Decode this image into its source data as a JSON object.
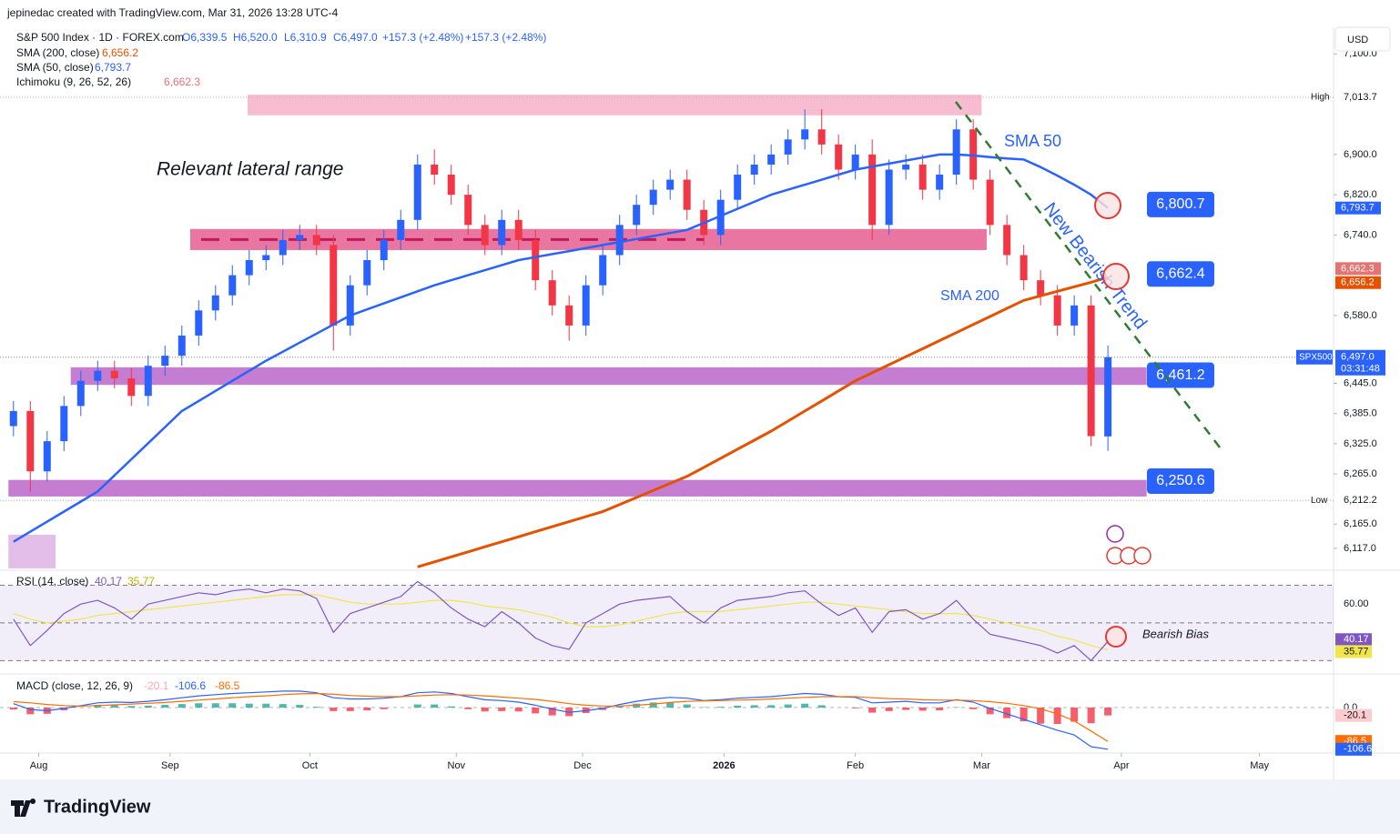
{
  "header": {
    "text": "jepinedac created with TradingView.com, Mar 31, 2026 13:28 UTC-4"
  },
  "footer": {
    "brand": "TradingView"
  },
  "chart_data": {
    "type": "candlestick",
    "title": "S&P 500 Index · 1D · FOREX.com",
    "ohlc_legend": [
      "O6,339.5",
      "H6,520.0",
      "L6,310.9",
      "C6,497.0",
      "+157.3 (+2.48%)",
      "+157.3 (+2.48%)"
    ],
    "currency": "USD",
    "x": [
      0,
      1,
      2,
      3,
      4,
      5,
      6,
      7,
      8,
      9,
      10,
      11,
      12,
      13,
      14,
      15,
      16,
      17,
      18,
      19,
      20,
      21,
      22,
      23,
      24,
      25,
      26,
      27,
      28,
      29,
      30,
      31,
      32,
      33,
      34,
      35,
      36,
      37,
      38,
      39,
      40,
      41,
      42,
      43,
      44,
      45,
      46,
      47,
      48,
      49,
      50,
      51,
      52,
      53,
      54,
      55,
      56,
      57,
      58,
      59,
      60,
      61,
      62,
      63,
      64,
      65
    ],
    "xlim": [
      -0.8,
      78.4
    ],
    "xticks": [
      {
        "value": 1.5,
        "label": "Aug"
      },
      {
        "value": 9.3,
        "label": "Sep"
      },
      {
        "value": 17.6,
        "label": "Oct"
      },
      {
        "value": 26.3,
        "label": "Nov"
      },
      {
        "value": 33.8,
        "label": "Dec"
      },
      {
        "value": 42.2,
        "label": "2026"
      },
      {
        "value": 50,
        "label": "Feb"
      },
      {
        "value": 57.5,
        "label": "Mar"
      },
      {
        "value": 65.8,
        "label": "Apr"
      },
      {
        "value": 74,
        "label": "May"
      }
    ],
    "ylim": [
      6077,
      7153
    ],
    "yticks": [
      {
        "value": 7100,
        "label": "7,100.0"
      },
      {
        "value": 6900,
        "label": "6,900.0"
      },
      {
        "value": 6820,
        "label": "6,820.0"
      },
      {
        "value": 6740,
        "label": "6,740.0"
      },
      {
        "value": 6580,
        "label": "6,580.0"
      },
      {
        "value": 6445,
        "label": "6,445.0"
      },
      {
        "value": 6385,
        "label": "6,385.0"
      },
      {
        "value": 6325,
        "label": "6,325.0"
      },
      {
        "value": 6265,
        "label": "6,265.0"
      },
      {
        "value": 6165,
        "label": "6,165.0"
      },
      {
        "value": 6117,
        "label": "6,117.0"
      }
    ],
    "series": [
      {
        "name": "SPX500",
        "up_color": "#2962ff",
        "down_color": "#f23645",
        "open": [
          6360,
          6390,
          6270,
          6330,
          6400,
          6450,
          6470,
          6455,
          6420,
          6480,
          6500,
          6540,
          6590,
          6620,
          6660,
          6690,
          6700,
          6730,
          6740,
          6720,
          6560,
          6640,
          6690,
          6730,
          6770,
          6880,
          6860,
          6820,
          6760,
          6720,
          6770,
          6730,
          6650,
          6600,
          6560,
          6640,
          6700,
          6760,
          6800,
          6830,
          6850,
          6790,
          6740,
          6810,
          6860,
          6880,
          6900,
          6930,
          6950,
          6920,
          6870,
          6900,
          6760,
          6870,
          6880,
          6830,
          6860,
          6950,
          6850,
          6760,
          6700,
          6650,
          6620,
          6560,
          6600,
          6339.5
        ],
        "high": [
          6410,
          6410,
          6350,
          6420,
          6470,
          6490,
          6490,
          6475,
          6500,
          6520,
          6560,
          6610,
          6640,
          6680,
          6710,
          6720,
          6750,
          6760,
          6760,
          6740,
          6660,
          6710,
          6750,
          6790,
          6900,
          6910,
          6880,
          6840,
          6780,
          6790,
          6790,
          6750,
          6670,
          6620,
          6660,
          6720,
          6780,
          6820,
          6850,
          6870,
          6870,
          6810,
          6830,
          6880,
          6900,
          6920,
          6950,
          6990,
          6990,
          6940,
          6920,
          6930,
          6890,
          6900,
          6900,
          6880,
          6970,
          6970,
          6870,
          6780,
          6720,
          6670,
          6640,
          6620,
          6620,
          6520
        ],
        "low": [
          6340,
          6230,
          6250,
          6310,
          6380,
          6430,
          6435,
          6400,
          6400,
          6460,
          6480,
          6520,
          6570,
          6600,
          6640,
          6670,
          6680,
          6710,
          6700,
          6510,
          6540,
          6620,
          6670,
          6710,
          6750,
          6840,
          6800,
          6740,
          6700,
          6700,
          6710,
          6630,
          6580,
          6530,
          6540,
          6620,
          6680,
          6740,
          6780,
          6810,
          6770,
          6720,
          6720,
          6790,
          6840,
          6860,
          6880,
          6910,
          6900,
          6850,
          6850,
          6730,
          6740,
          6850,
          6810,
          6810,
          6840,
          6830,
          6740,
          6680,
          6630,
          6600,
          6540,
          6540,
          6320,
          6310.9
        ],
        "close": [
          6390,
          6270,
          6330,
          6400,
          6450,
          6470,
          6455,
          6420,
          6480,
          6500,
          6540,
          6590,
          6620,
          6660,
          6690,
          6700,
          6730,
          6740,
          6720,
          6560,
          6640,
          6690,
          6730,
          6770,
          6880,
          6860,
          6820,
          6760,
          6720,
          6770,
          6730,
          6650,
          6600,
          6560,
          6640,
          6700,
          6760,
          6800,
          6830,
          6850,
          6790,
          6740,
          6810,
          6860,
          6880,
          6900,
          6930,
          6950,
          6920,
          6870,
          6900,
          6760,
          6870,
          6880,
          6830,
          6860,
          6950,
          6850,
          6760,
          6700,
          6650,
          6620,
          6560,
          6600,
          6340,
          6497
        ]
      }
    ],
    "indicators": [
      {
        "name": "SMA (200, close)",
        "value_label": "6,656.2",
        "color": "#e65100",
        "values": [
          null,
          null,
          null,
          null,
          null,
          null,
          null,
          null,
          null,
          null,
          null,
          null,
          null,
          null,
          null,
          null,
          null,
          null,
          null,
          null,
          null,
          null,
          null,
          null,
          6080,
          6090,
          6100,
          6110,
          6120,
          6130,
          6140,
          6150,
          6160,
          6170,
          6180,
          6190,
          6204,
          6218,
          6232,
          6246,
          6260,
          6278,
          6296,
          6314,
          6332,
          6350,
          6370,
          6390,
          6410,
          6430,
          6450,
          6466,
          6482,
          6498,
          6514,
          6530,
          6546,
          6562,
          6578,
          6594,
          6610,
          6619,
          6628,
          6637,
          6646,
          6656.2
        ]
      },
      {
        "name": "SMA (50, close)",
        "value_label": "6,793.7",
        "color": "#2962ff",
        "values": [
          6130,
          6150,
          6170,
          6190,
          6210,
          6230,
          6262,
          6294,
          6326,
          6358,
          6390,
          6410,
          6430,
          6450,
          6470,
          6490,
          6508,
          6526,
          6544,
          6562,
          6580,
          6592,
          6604,
          6616,
          6628,
          6640,
          6650,
          6660,
          6670,
          6680,
          6690,
          6696,
          6702,
          6708,
          6714,
          6720,
          6726,
          6732,
          6738,
          6744,
          6750,
          6764,
          6778,
          6792,
          6806,
          6820,
          6830,
          6840,
          6850,
          6860,
          6870,
          6876,
          6882,
          6888,
          6894,
          6900,
          6900,
          6898,
          6895,
          6892,
          6890,
          6875,
          6858,
          6840,
          6820,
          6793.7
        ]
      },
      {
        "name": "Ichimoku (9, 26, 52, 26)",
        "value_label": "6,662.3",
        "value": 6662.3,
        "color": "#f7a9a7"
      }
    ],
    "high_marker": {
      "tag": "High",
      "value": 7013.7,
      "label": "7,013.7"
    },
    "low_marker": {
      "tag": "Low",
      "value": 6212.2,
      "label": "6,212.2"
    },
    "last": {
      "value": 6497.0,
      "label": "6,497.0",
      "symbol": "SPX500",
      "countdown": "03:31:48",
      "color": "#2962ff"
    },
    "zones": [
      {
        "y": [
          6978,
          7019
        ],
        "x": [
          13.9,
          57.5
        ],
        "color": "#f48fb1"
      },
      {
        "y": [
          6710,
          6752
        ],
        "x": [
          10.5,
          57.8
        ],
        "color": "#d81b60",
        "midline": "#c2185b"
      },
      {
        "y": [
          6442,
          6477
        ],
        "x": [
          3.4,
          67.3
        ],
        "color": "#9c27b0"
      },
      {
        "y": [
          6220,
          6253
        ],
        "x": [
          -0.3,
          67.3
        ],
        "color": "#9c27b0"
      },
      {
        "y": [
          6077,
          6144
        ],
        "x": [
          -0.3,
          2.5
        ],
        "color": "#ce93d8"
      }
    ],
    "level_labels": [
      {
        "value": 6800.7,
        "label": "6,800.7"
      },
      {
        "value": 6662.4,
        "label": "6,662.4"
      },
      {
        "value": 6461.2,
        "label": "6,461.2"
      },
      {
        "value": 6250.6,
        "label": "6,250.6"
      }
    ],
    "annotations": [
      "Relevant lateral range",
      "SMA 50",
      "SMA 200",
      "New Bearish Trend",
      "Bearish Bias"
    ],
    "rsi": {
      "name": "RSI (14, close)",
      "ylim": [
        23.4,
        77.5
      ],
      "yticks": [
        {
          "value": 60,
          "label": "60.00"
        }
      ],
      "bands": [
        70,
        50,
        30
      ],
      "series": [
        {
          "color": "#7e57c2",
          "values": [
            52,
            38,
            46,
            55,
            60,
            62,
            58,
            52,
            60,
            62,
            64,
            66,
            65,
            67,
            68,
            66,
            68,
            67,
            63,
            45,
            55,
            58,
            61,
            64,
            72,
            66,
            58,
            52,
            48,
            56,
            50,
            42,
            38,
            36,
            50,
            55,
            60,
            62,
            63,
            64,
            56,
            50,
            58,
            62,
            63,
            64,
            66,
            67,
            60,
            54,
            58,
            45,
            56,
            57,
            52,
            55,
            62,
            52,
            44,
            42,
            40,
            38,
            34,
            38,
            30,
            40.17
          ]
        },
        {
          "color": "#f1e54b",
          "values": [
            55,
            52,
            50,
            51,
            52,
            54,
            55,
            56,
            57,
            58,
            59,
            60,
            61,
            62,
            63,
            64,
            65,
            65,
            65,
            63,
            61,
            60,
            60,
            60,
            61,
            62,
            62,
            61,
            59,
            58,
            57,
            55,
            53,
            50,
            48,
            48,
            49,
            51,
            53,
            55,
            56,
            56,
            56,
            57,
            58,
            59,
            60,
            61,
            61,
            60,
            59,
            58,
            57,
            56,
            55,
            55,
            55,
            54,
            52,
            50,
            48,
            46,
            43,
            41,
            38,
            35.77
          ]
        }
      ]
    },
    "macd": {
      "name": "MACD (close, 12, 26, 9)",
      "ylim": [
        -116.3,
        83.7
      ],
      "yticks": [
        {
          "value": 0,
          "label": "0.0"
        }
      ],
      "histogram": {
        "up_color": "#26a69a",
        "down_color": "#f23645",
        "values": [
          -5,
          -17,
          -16,
          -7,
          1,
          7,
          7,
          4,
          5,
          7,
          9,
          11,
          11,
          11,
          10,
          10,
          9,
          7,
          2,
          -9,
          -9,
          -7,
          -4,
          0,
          8,
          8,
          3,
          -4,
          -10,
          -9,
          -10,
          -15,
          -20,
          -22,
          -14,
          -6,
          4,
          10,
          13,
          13,
          8,
          1,
          2,
          5,
          6,
          6,
          8,
          10,
          6,
          0,
          -2,
          -13,
          -9,
          -6,
          -8,
          -7,
          1,
          -4,
          -17,
          -27,
          -35,
          -41,
          -42,
          -36,
          -40,
          -20.1
        ]
      },
      "series": [
        {
          "color": "#2962ff",
          "values": [
            10,
            -5,
            -8,
            -2,
            5,
            12,
            14,
            13,
            16,
            20,
            25,
            30,
            33,
            36,
            38,
            40,
            42,
            42,
            38,
            25,
            22,
            22,
            24,
            28,
            38,
            40,
            36,
            28,
            20,
            18,
            14,
            6,
            -4,
            -12,
            -8,
            -2,
            8,
            16,
            22,
            26,
            24,
            18,
            20,
            24,
            26,
            28,
            32,
            36,
            34,
            28,
            26,
            12,
            14,
            16,
            12,
            12,
            20,
            14,
            -2,
            -16,
            -30,
            -44,
            -58,
            -70,
            -100,
            -106.6
          ]
        },
        {
          "color": "#ff6d00",
          "values": [
            15,
            12,
            8,
            5,
            4,
            5,
            7,
            9,
            11,
            13,
            16,
            19,
            22,
            25,
            28,
            30,
            33,
            35,
            36,
            34,
            31,
            29,
            28,
            28,
            30,
            32,
            33,
            32,
            30,
            27,
            24,
            21,
            16,
            10,
            6,
            4,
            4,
            6,
            9,
            13,
            16,
            17,
            18,
            19,
            20,
            22,
            24,
            26,
            28,
            28,
            28,
            25,
            23,
            22,
            20,
            19,
            19,
            18,
            15,
            11,
            5,
            -3,
            -16,
            -34,
            -60,
            -86.5
          ]
        }
      ]
    }
  }
}
